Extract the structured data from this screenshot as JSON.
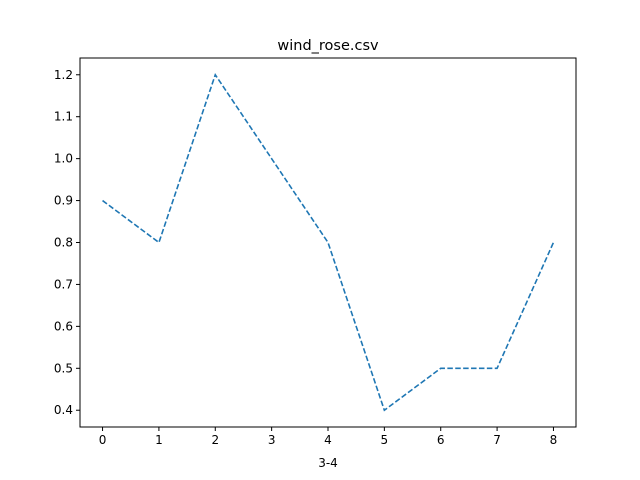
{
  "chart_data": {
    "type": "line",
    "title": "wind_rose.csv",
    "xlabel": "3-4",
    "ylabel": "",
    "x": [
      0,
      1,
      2,
      3,
      4,
      5,
      6,
      7,
      8
    ],
    "series": [
      {
        "values": [
          0.9,
          0.8,
          1.2,
          1.0,
          0.8,
          0.4,
          0.5,
          0.5,
          0.8
        ],
        "color": "#1f77b4",
        "linestyle": "dashed"
      }
    ],
    "xlim": [
      -0.4,
      8.4
    ],
    "ylim": [
      0.36,
      1.24
    ],
    "xticks": [
      "0",
      "1",
      "2",
      "3",
      "4",
      "5",
      "6",
      "7",
      "8"
    ],
    "yticks": [
      "0.4",
      "0.5",
      "0.6",
      "0.7",
      "0.8",
      "0.9",
      "1.0",
      "1.1",
      "1.2"
    ],
    "grid": false,
    "legend": "none"
  }
}
